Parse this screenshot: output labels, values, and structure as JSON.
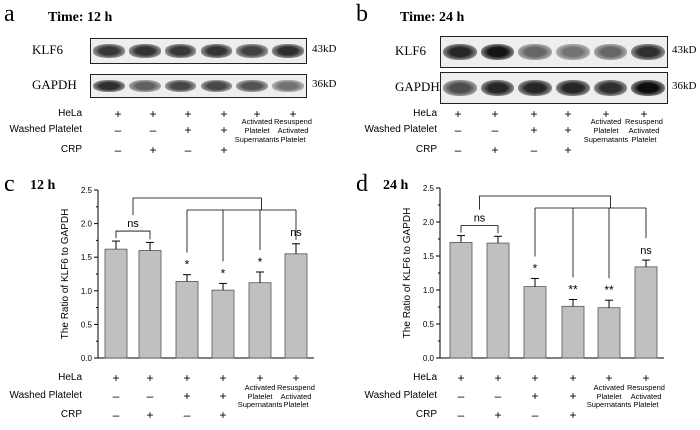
{
  "panels": [
    {
      "letter": "a",
      "title": "Time: 12 h",
      "blots": [
        {
          "name": "KLF6",
          "kd": "43kD",
          "intensity": [
            0.78,
            0.8,
            0.78,
            0.8,
            0.74,
            0.82
          ]
        },
        {
          "name": "GAPDH",
          "kd": "36kD",
          "intensity": [
            0.82,
            0.62,
            0.72,
            0.72,
            0.68,
            0.55
          ]
        }
      ]
    },
    {
      "letter": "b",
      "title": "Time: 24 h",
      "blots": [
        {
          "name": "KLF6",
          "kd": "43kD",
          "intensity": [
            0.85,
            0.92,
            0.6,
            0.55,
            0.6,
            0.82
          ]
        },
        {
          "name": "GAPDH",
          "kd": "36kD",
          "intensity": [
            0.7,
            0.85,
            0.85,
            0.85,
            0.82,
            0.95
          ]
        }
      ]
    }
  ],
  "condition_rows": {
    "labels": [
      "HeLa",
      "Washed Platelet",
      "CRP"
    ],
    "hela": [
      "+",
      "+",
      "+",
      "+",
      "+",
      "+"
    ],
    "washed": [
      "–",
      "–",
      "+",
      "+",
      "Activated\nPlatelet",
      "Resuspend\nActivated"
    ],
    "crp": [
      "–",
      "+",
      "–",
      "+",
      "Supernatants",
      "Platelet"
    ]
  },
  "chart_data": [
    {
      "type": "bar",
      "letter": "c",
      "title": "12 h",
      "ylabel": "The Ratio of KLF6 to GAPDH",
      "ylim": [
        0,
        2.5
      ],
      "yticks": [
        "0.0",
        "0.5",
        "1.0",
        "1.5",
        "2.0",
        "2.5"
      ],
      "values": [
        1.62,
        1.6,
        1.14,
        1.01,
        1.12,
        1.55
      ],
      "errors": [
        0.12,
        0.12,
        0.1,
        0.1,
        0.16,
        0.15
      ],
      "significance": [
        "",
        "",
        "*",
        "*",
        "*",
        ""
      ],
      "brackets": [
        "ns",
        "ns"
      ]
    },
    {
      "type": "bar",
      "letter": "d",
      "title": "24 h",
      "ylabel": "The Ratio of KLF6 to GAPDH",
      "ylim": [
        0,
        2.5
      ],
      "yticks": [
        "0.0",
        "0.5",
        "1.0",
        "1.5",
        "2.0",
        "2.5"
      ],
      "values": [
        1.7,
        1.69,
        1.05,
        0.76,
        0.74,
        1.34
      ],
      "errors": [
        0.1,
        0.1,
        0.12,
        0.1,
        0.11,
        0.1
      ],
      "significance": [
        "",
        "",
        "*",
        "**",
        "**",
        "ns"
      ],
      "brackets": [
        "ns"
      ]
    }
  ]
}
